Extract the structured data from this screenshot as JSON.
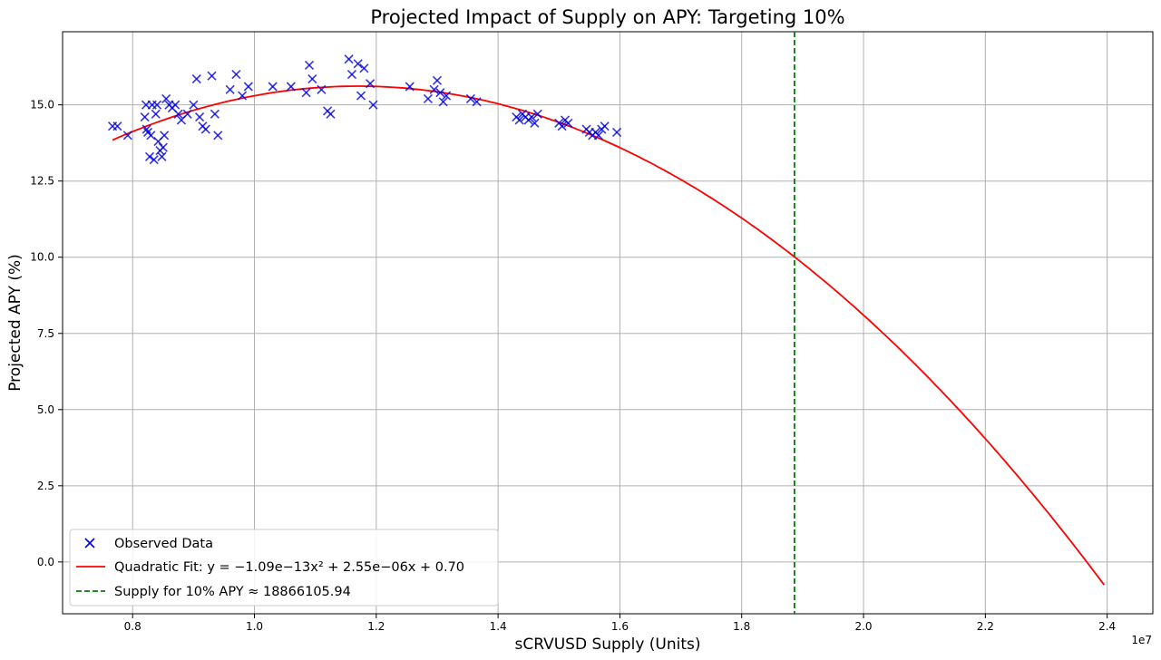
{
  "chart_data": {
    "type": "scatter",
    "title": "Projected Impact of Supply on APY: Targeting 10%",
    "xlabel": "sCRVUSD Supply (Units)",
    "ylabel": "Projected APY (%)",
    "x_multiplier_label": "1e7",
    "xlim": [
      0.685,
      2.475
    ],
    "ylim": [
      -1.7,
      17.4
    ],
    "xticks": [
      0.8,
      1.0,
      1.2,
      1.4,
      1.6,
      1.8,
      2.0,
      2.2,
      2.4
    ],
    "xtick_labels": [
      "0.8",
      "1.0",
      "1.2",
      "1.4",
      "1.6",
      "1.8",
      "2.0",
      "2.2",
      "2.4"
    ],
    "yticks": [
      0.0,
      2.5,
      5.0,
      7.5,
      10.0,
      12.5,
      15.0
    ],
    "ytick_labels": [
      "0.0",
      "2.5",
      "5.0",
      "7.5",
      "10.0",
      "12.5",
      "15.0"
    ],
    "grid": true,
    "legend_position": "lower-left",
    "series": [
      {
        "name": "Observed Data",
        "kind": "scatter",
        "marker": "x",
        "color": "#0000dd",
        "x": [
          0.767,
          0.775,
          0.792,
          0.82,
          0.822,
          0.823,
          0.825,
          0.828,
          0.83,
          0.832,
          0.835,
          0.838,
          0.84,
          0.842,
          0.845,
          0.848,
          0.85,
          0.852,
          0.855,
          0.86,
          0.865,
          0.87,
          0.875,
          0.88,
          0.89,
          0.9,
          0.905,
          0.91,
          0.915,
          0.92,
          0.93,
          0.935,
          0.94,
          0.96,
          0.97,
          0.98,
          0.99,
          1.03,
          1.06,
          1.085,
          1.09,
          1.095,
          1.11,
          1.12,
          1.125,
          1.155,
          1.16,
          1.17,
          1.175,
          1.18,
          1.19,
          1.195,
          1.255,
          1.285,
          1.295,
          1.3,
          1.305,
          1.31,
          1.315,
          1.355,
          1.365,
          1.43,
          1.435,
          1.44,
          1.445,
          1.45,
          1.455,
          1.46,
          1.465,
          1.5,
          1.505,
          1.51,
          1.515,
          1.545,
          1.55,
          1.555,
          1.56,
          1.565,
          1.57,
          1.575,
          1.595
        ],
        "y": [
          14.3,
          14.3,
          14.0,
          14.6,
          15.0,
          14.2,
          14.1,
          13.3,
          14.0,
          15.0,
          13.2,
          14.7,
          15.0,
          13.8,
          13.5,
          13.3,
          13.6,
          14.0,
          15.2,
          15.0,
          14.9,
          15.0,
          14.7,
          14.5,
          14.7,
          15.0,
          15.85,
          14.6,
          14.3,
          14.2,
          15.95,
          14.7,
          14.0,
          15.5,
          16.0,
          15.3,
          15.6,
          15.6,
          15.6,
          15.4,
          16.3,
          15.85,
          15.5,
          14.8,
          14.7,
          16.5,
          16.0,
          16.35,
          15.3,
          16.2,
          15.7,
          15.0,
          15.6,
          15.2,
          15.5,
          15.8,
          15.4,
          15.1,
          15.3,
          15.2,
          15.1,
          14.6,
          14.5,
          14.7,
          14.6,
          14.5,
          14.6,
          14.4,
          14.7,
          14.4,
          14.3,
          14.5,
          14.4,
          14.2,
          14.1,
          14.0,
          14.1,
          14.0,
          14.2,
          14.3,
          14.1
        ]
      },
      {
        "name": "Quadratic Fit: y = −1.09e−13x² + 2.55e−06x + 0.70",
        "kind": "line",
        "color": "#ff0000",
        "coefficients": {
          "a": -1.09e-13,
          "b": 2.55e-06,
          "c": 0.7
        },
        "x_range": [
          0.767,
          2.395
        ]
      },
      {
        "name": "Supply for 10% APY ≈ 18866105.94",
        "kind": "vline",
        "color": "#008000",
        "x": 1.8866
      }
    ]
  }
}
